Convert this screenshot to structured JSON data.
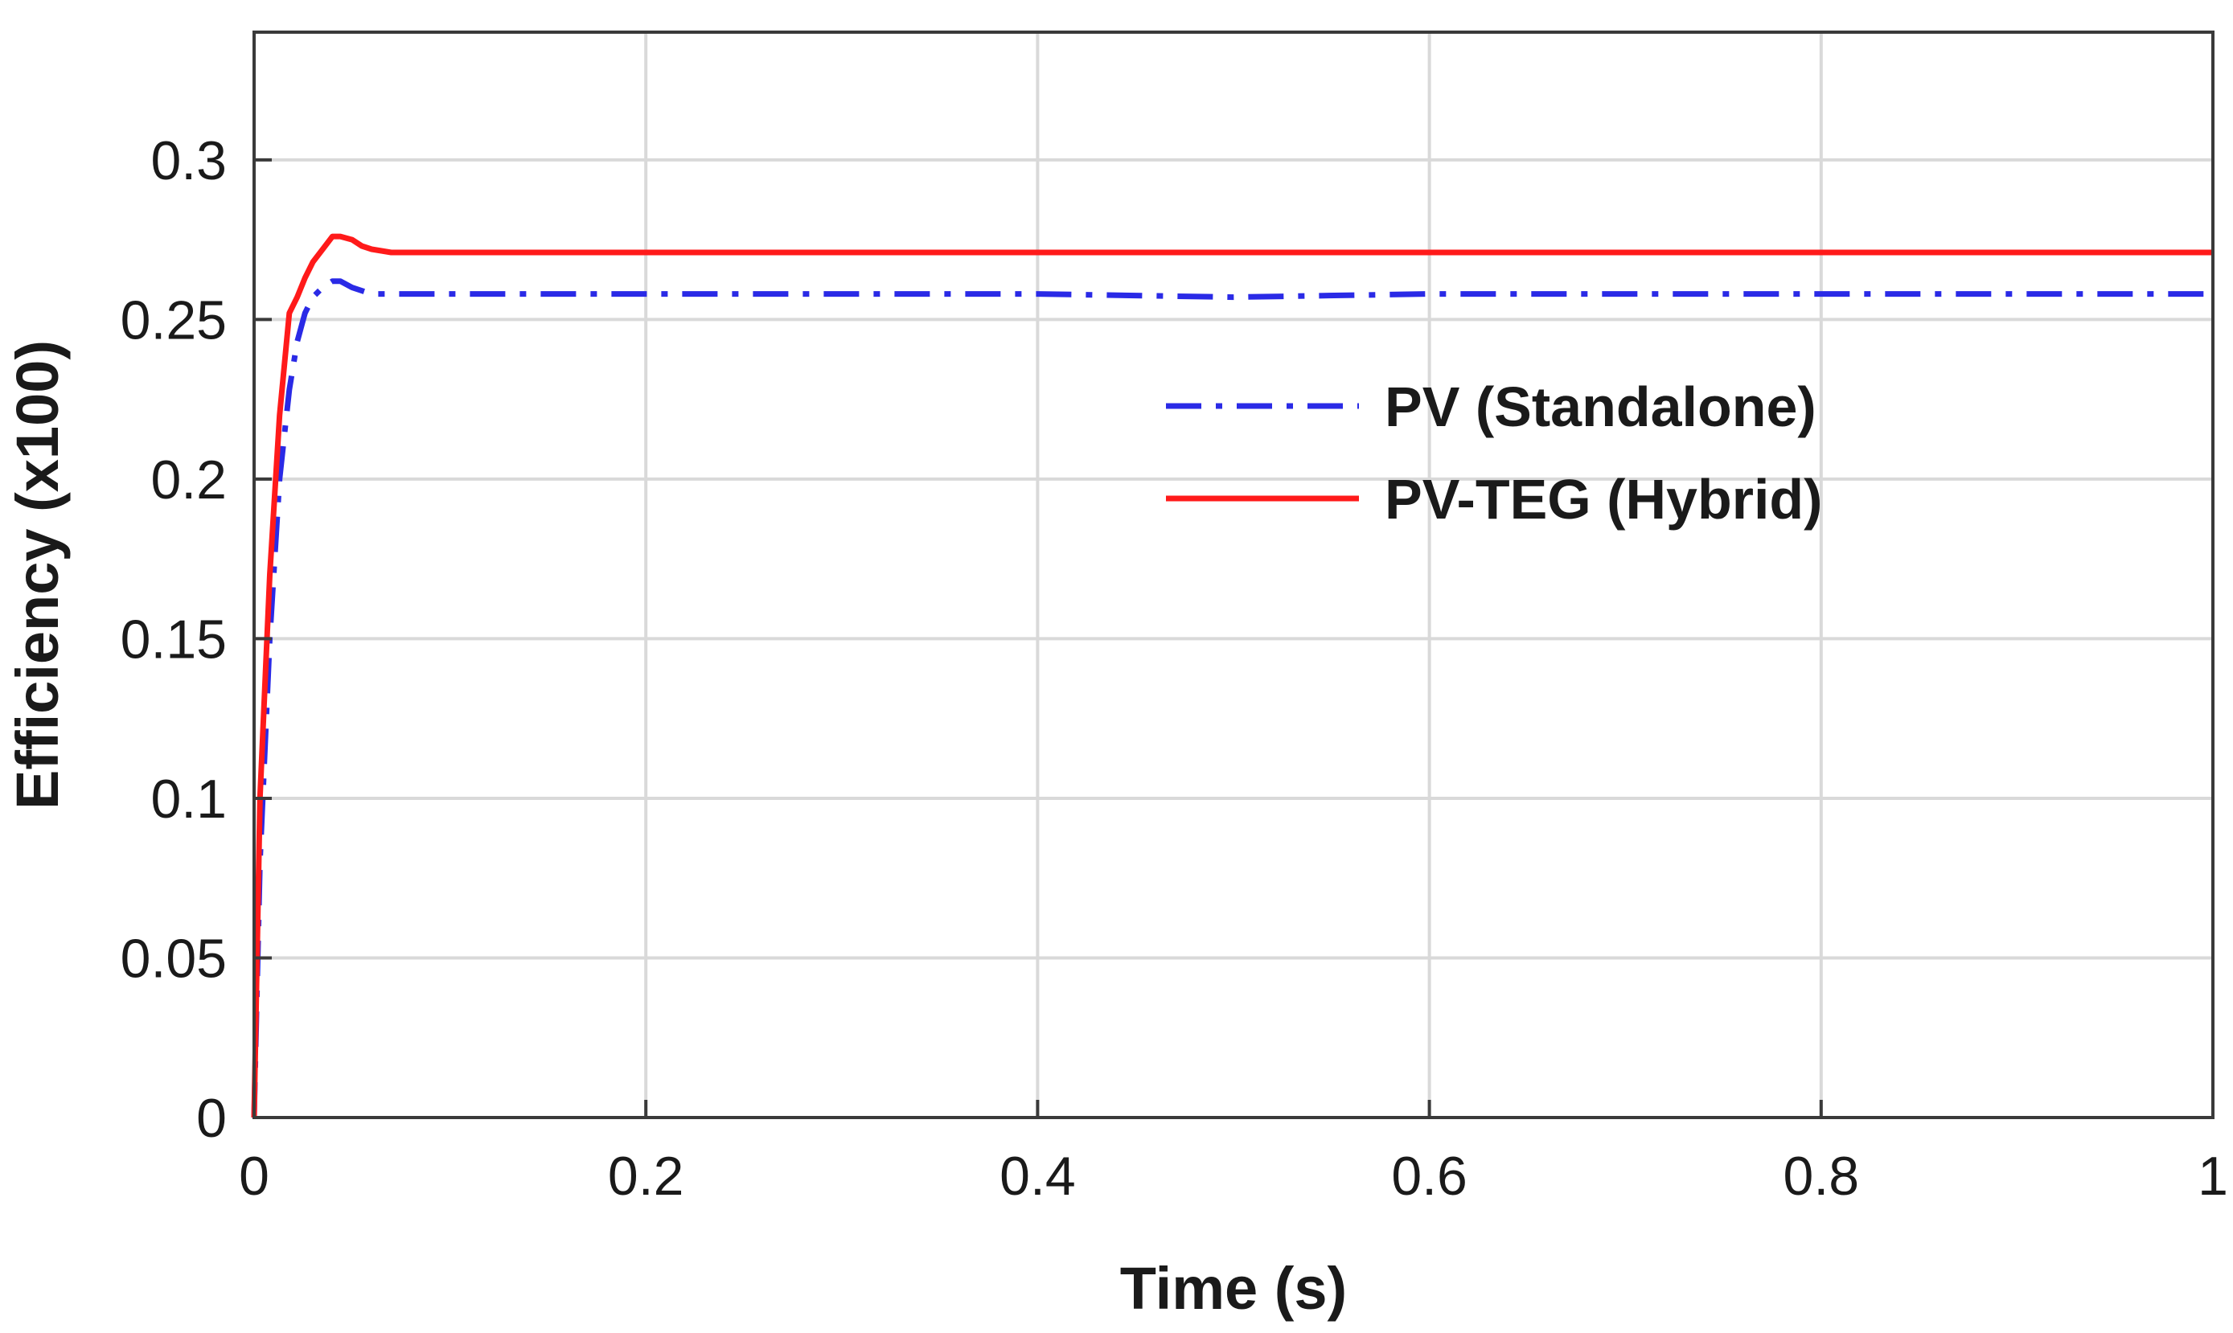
{
  "chart_data": {
    "type": "line",
    "title": "",
    "xlabel": "Time (s)",
    "ylabel": "Efficiency (x100)",
    "xlim": [
      0,
      1
    ],
    "ylim": [
      0,
      0.34
    ],
    "xticks": [
      0,
      0.2,
      0.4,
      0.6,
      0.8,
      1
    ],
    "xtick_labels": [
      "0",
      "0.2",
      "0.4",
      "0.6",
      "0.8",
      "1"
    ],
    "yticks": [
      0,
      0.05,
      0.1,
      0.15,
      0.2,
      0.25,
      0.3
    ],
    "ytick_labels": [
      "0",
      "0.05",
      "0.1",
      "0.15",
      "0.2",
      "0.25",
      "0.3"
    ],
    "grid": true,
    "legend_position": "center-right",
    "series": [
      {
        "name": "PV (Standalone)",
        "color": "#2a2ae6",
        "line_style": "dash-dot",
        "x": [
          0,
          0.003,
          0.008,
          0.013,
          0.018,
          0.022,
          0.026,
          0.03,
          0.035,
          0.04,
          0.044,
          0.05,
          0.06,
          0.07,
          0.1,
          0.2,
          0.3,
          0.4,
          0.5,
          0.6,
          0.7,
          0.8,
          0.9,
          1.0
        ],
        "y": [
          0,
          0.08,
          0.15,
          0.2,
          0.228,
          0.243,
          0.252,
          0.257,
          0.26,
          0.262,
          0.262,
          0.26,
          0.258,
          0.258,
          0.258,
          0.258,
          0.258,
          0.258,
          0.257,
          0.258,
          0.258,
          0.258,
          0.258,
          0.258
        ]
      },
      {
        "name": "PV-TEG (Hybrid)",
        "color": "#ff1a1a",
        "line_style": "solid",
        "x": [
          0,
          0.003,
          0.008,
          0.013,
          0.018,
          0.022,
          0.026,
          0.03,
          0.035,
          0.04,
          0.044,
          0.05,
          0.055,
          0.06,
          0.07,
          0.1,
          0.2,
          0.3,
          0.4,
          0.5,
          0.6,
          0.7,
          0.8,
          0.9,
          1.0
        ],
        "y": [
          0,
          0.1,
          0.17,
          0.22,
          0.252,
          0.257,
          0.263,
          0.268,
          0.272,
          0.276,
          0.276,
          0.275,
          0.273,
          0.272,
          0.271,
          0.271,
          0.271,
          0.271,
          0.271,
          0.271,
          0.271,
          0.271,
          0.271,
          0.271,
          0.271
        ]
      }
    ]
  }
}
